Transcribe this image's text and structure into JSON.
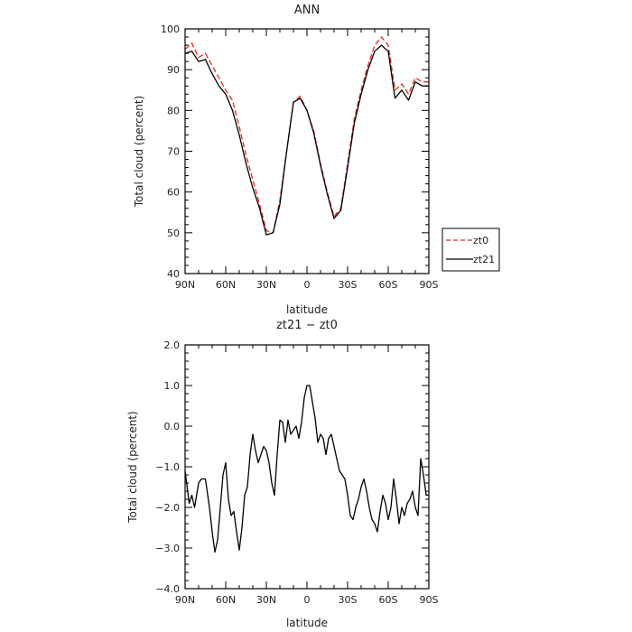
{
  "chart_data": [
    {
      "type": "line",
      "title": "ANN",
      "xlabel": "latitude",
      "ylabel": "Total cloud (percent)",
      "x_tick_labels": [
        "90N",
        "60N",
        "30N",
        "0",
        "30S",
        "60S",
        "90S"
      ],
      "y_tick_labels": [
        "40",
        "50",
        "60",
        "70",
        "80",
        "90",
        "100"
      ],
      "xlim": [
        90,
        -90
      ],
      "ylim": [
        40,
        100
      ],
      "grid": false,
      "legend_position": "right",
      "legend": [
        "zt0",
        "zt21"
      ],
      "series": [
        {
          "name": "zt0",
          "color": "#e8261e",
          "dash": "dashed",
          "x": [
            90,
            85,
            80,
            75,
            70,
            65,
            60,
            55,
            50,
            45,
            40,
            35,
            30,
            25,
            20,
            15,
            10,
            5,
            0,
            -5,
            -10,
            -15,
            -20,
            -25,
            -30,
            -35,
            -40,
            -45,
            -50,
            -55,
            -60,
            -65,
            -70,
            -75,
            -80,
            -85,
            -90
          ],
          "y": [
            95,
            96.5,
            93,
            94,
            91,
            88,
            85,
            82.5,
            76,
            69,
            63,
            57,
            50.5,
            50,
            58,
            70,
            82,
            83.5,
            80,
            75,
            67,
            60,
            54,
            56,
            67,
            78,
            85,
            91,
            96,
            98,
            96,
            85,
            86.5,
            84,
            88,
            87,
            87
          ]
        },
        {
          "name": "zt21",
          "color": "#000000",
          "dash": "solid",
          "x": [
            90,
            85,
            80,
            75,
            70,
            65,
            60,
            55,
            50,
            45,
            40,
            35,
            30,
            25,
            20,
            15,
            10,
            5,
            0,
            -5,
            -10,
            -15,
            -20,
            -25,
            -30,
            -35,
            -40,
            -45,
            -50,
            -55,
            -60,
            -65,
            -70,
            -75,
            -80,
            -85,
            -90
          ],
          "y": [
            94,
            94.5,
            92,
            92.5,
            89,
            86,
            84,
            80,
            74,
            67,
            61,
            56,
            49.5,
            50,
            57,
            70,
            82,
            83,
            80,
            74.5,
            66.5,
            59.5,
            53.5,
            55.5,
            66,
            77,
            84,
            90,
            94.5,
            96,
            94.5,
            83,
            85,
            82.5,
            87,
            86,
            86
          ]
        }
      ]
    },
    {
      "type": "line",
      "title": "zt21 − zt0",
      "xlabel": "latitude",
      "ylabel": "Total cloud (percent)",
      "x_tick_labels": [
        "90N",
        "60N",
        "30N",
        "0",
        "30S",
        "60S",
        "90S"
      ],
      "y_tick_labels": [
        "−4.0",
        "−3.0",
        "−2.0",
        "−1.0",
        "0.0",
        "1.0",
        "2.0"
      ],
      "xlim": [
        90,
        -90
      ],
      "ylim": [
        -4,
        2
      ],
      "grid": false,
      "series": [
        {
          "color": "#000000",
          "dash": "solid",
          "x": [
            90,
            87,
            85,
            83,
            80,
            78,
            75,
            72,
            70,
            68,
            66,
            64,
            62,
            60,
            58,
            56,
            54,
            52,
            50,
            48,
            46,
            44,
            42,
            40,
            38,
            36,
            34,
            32,
            30,
            28,
            26,
            24,
            22,
            20,
            18,
            16,
            14,
            12,
            10,
            8,
            6,
            4,
            2,
            0,
            -2,
            -4,
            -6,
            -8,
            -10,
            -12,
            -14,
            -16,
            -18,
            -20,
            -22,
            -24,
            -26,
            -28,
            -30,
            -32,
            -34,
            -36,
            -38,
            -40,
            -42,
            -44,
            -46,
            -48,
            -50,
            -52,
            -54,
            -56,
            -58,
            -60,
            -62,
            -64,
            -66,
            -68,
            -70,
            -72,
            -74,
            -76,
            -78,
            -80,
            -82,
            -84,
            -86,
            -88,
            -90
          ],
          "y": [
            -1.1,
            -1.9,
            -1.7,
            -2.0,
            -1.4,
            -1.3,
            -1.3,
            -2.0,
            -2.6,
            -3.1,
            -2.8,
            -2.0,
            -1.2,
            -0.9,
            -1.8,
            -2.2,
            -2.1,
            -2.6,
            -3.05,
            -2.5,
            -1.7,
            -1.5,
            -0.7,
            -0.2,
            -0.6,
            -0.9,
            -0.7,
            -0.5,
            -0.6,
            -0.9,
            -1.4,
            -1.7,
            -0.7,
            0.15,
            0.1,
            -0.4,
            0.15,
            -0.2,
            -0.1,
            0.0,
            -0.3,
            0.1,
            0.7,
            1.0,
            1.0,
            0.6,
            0.2,
            -0.4,
            -0.2,
            -0.3,
            -0.7,
            -0.3,
            -0.2,
            -0.5,
            -0.8,
            -1.1,
            -1.2,
            -1.3,
            -1.7,
            -2.2,
            -2.3,
            -2.0,
            -1.8,
            -1.5,
            -1.3,
            -1.6,
            -2.0,
            -2.3,
            -2.4,
            -2.6,
            -2.1,
            -1.7,
            -1.9,
            -2.3,
            -2.0,
            -1.3,
            -1.8,
            -2.4,
            -2.0,
            -2.2,
            -1.9,
            -1.8,
            -1.6,
            -2.0,
            -2.2,
            -0.8,
            -1.2,
            -1.7,
            -1.7
          ]
        }
      ]
    }
  ]
}
